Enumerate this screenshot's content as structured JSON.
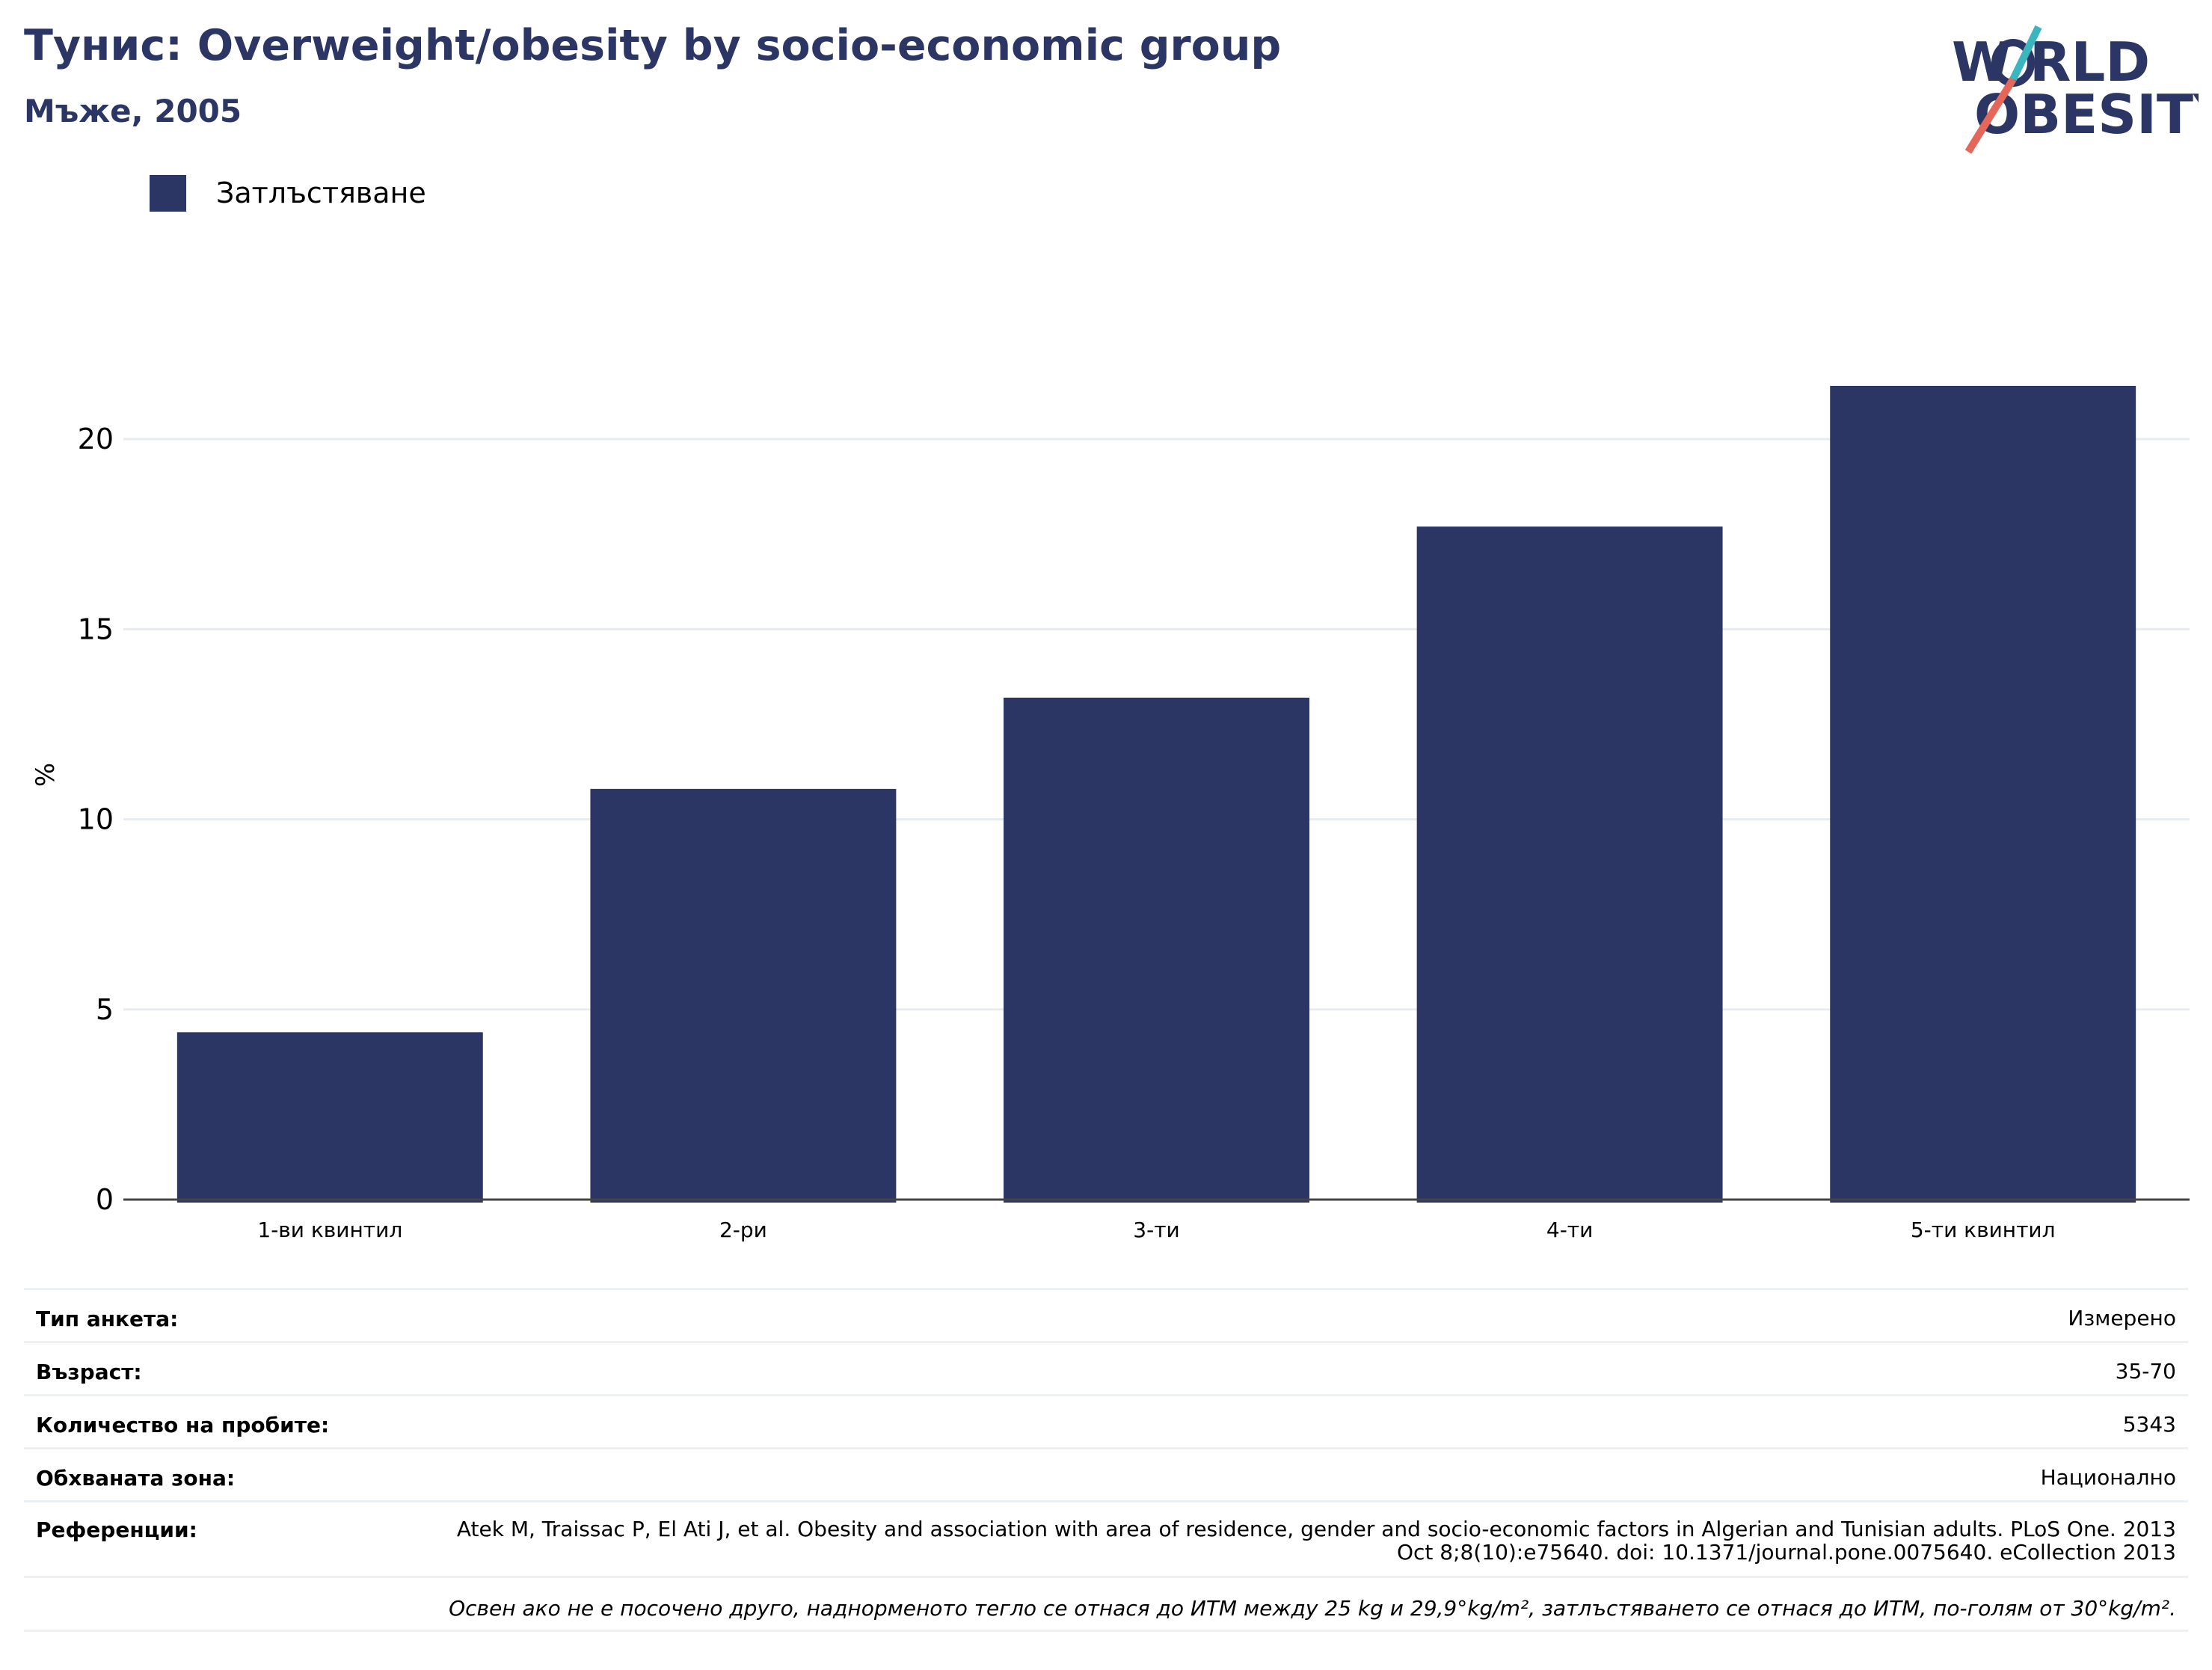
{
  "header": {
    "title": "Тунис: Overweight/obesity by socio-economic group",
    "subtitle": "Мъже, 2005",
    "logo_text": "WORLD OBESITY"
  },
  "colors": {
    "bar": "#2b3664",
    "title": "#2b3664",
    "grid": "#e8ecf0",
    "axis": "#444444",
    "logo_teal": "#3bb6bf",
    "logo_red": "#e5675a"
  },
  "chart_data": {
    "type": "bar",
    "title": "Тунис: Overweight/obesity by socio-economic group",
    "subtitle": "Мъже, 2005",
    "categories": [
      "1-ви квинтил",
      "2-ри",
      "3-ти",
      "4-ти",
      "5-ти квинтил"
    ],
    "series": [
      {
        "name": "Затлъстяване",
        "values": [
          4.4,
          10.8,
          13.2,
          17.7,
          21.4
        ]
      }
    ],
    "ylabel": "%",
    "xlabel": "",
    "ylim": [
      0,
      22.5
    ],
    "yticks": [
      0,
      5,
      10,
      15,
      20
    ],
    "grid": true,
    "legend": "top-left"
  },
  "info": {
    "rows": [
      {
        "label": "Тип анкета:",
        "value": "Измерено"
      },
      {
        "label": "Възраст:",
        "value": "35-70"
      },
      {
        "label": "Количество на пробите:",
        "value": "5343"
      },
      {
        "label": "Обхваната зона:",
        "value": "Национално"
      }
    ],
    "reference": {
      "label": "Референции:",
      "value": "Atek M, Traissac P, El Ati J, et al. Obesity and association with area of residence, gender and socio-economic factors in Algerian and Tunisian adults. PLoS One. 2013 Oct 8;8(10):e75640. doi: 10.1371/journal.pone.0075640. eCollection 2013"
    },
    "note": "Освен ако не е посочено друго, наднорменото тегло се отнася до ИТМ между 25 kg и 29,9°kg/m², затлъстяването се отнася до ИТМ, по-голям от 30°kg/m²."
  }
}
